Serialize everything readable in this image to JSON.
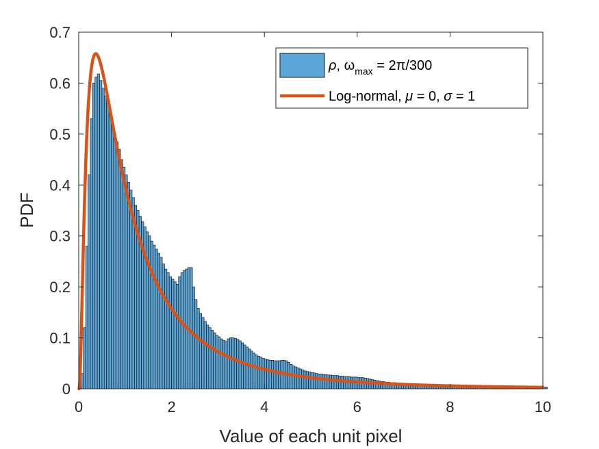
{
  "chart_data": {
    "type": "bar",
    "xlabel": "Value of each unit pixel",
    "ylabel": "PDF",
    "xlim": [
      0,
      10
    ],
    "ylim": [
      0,
      0.7
    ],
    "xticks": [
      "0",
      "2",
      "4",
      "6",
      "8",
      "10"
    ],
    "yticks": [
      "0",
      "0.1",
      "0.2",
      "0.3",
      "0.4",
      "0.5",
      "0.6",
      "0.7"
    ],
    "grid": false,
    "legend_position": "top-right",
    "colors": {
      "bars": "#5aa6d8",
      "bar_edge": "#1a1a1a",
      "curve": "#d95319"
    },
    "legend": {
      "hist_label": {
        "sym": "ρ",
        "mid": ", ω",
        "sub": "max",
        "tail": " = 2π/300"
      },
      "curve_label": {
        "pre": "Log-normal, ",
        "mu": "μ",
        "mid": " = 0, ",
        "sigma": "σ",
        "tail": " = 1"
      }
    },
    "series": [
      {
        "type": "histogram",
        "bin_width": 0.05,
        "bin_start": 0,
        "values": [
          0.003,
          0.03,
          0.12,
          0.28,
          0.42,
          0.53,
          0.6,
          0.612,
          0.618,
          0.605,
          0.59,
          0.575,
          0.56,
          0.54,
          0.52,
          0.5,
          0.485,
          0.47,
          0.45,
          0.435,
          0.42,
          0.405,
          0.39,
          0.375,
          0.36,
          0.35,
          0.338,
          0.328,
          0.318,
          0.308,
          0.3,
          0.29,
          0.282,
          0.274,
          0.266,
          0.258,
          0.245,
          0.235,
          0.228,
          0.22,
          0.215,
          0.21,
          0.205,
          0.22,
          0.228,
          0.232,
          0.235,
          0.238,
          0.238,
          0.2,
          0.175,
          0.158,
          0.148,
          0.14,
          0.132,
          0.125,
          0.12,
          0.115,
          0.11,
          0.105,
          0.102,
          0.098,
          0.095,
          0.093,
          0.098,
          0.1,
          0.1,
          0.099,
          0.097,
          0.094,
          0.09,
          0.086,
          0.082,
          0.078,
          0.074,
          0.07,
          0.067,
          0.064,
          0.062,
          0.06,
          0.058,
          0.057,
          0.056,
          0.056,
          0.055,
          0.055,
          0.055,
          0.056,
          0.056,
          0.055,
          0.052,
          0.048,
          0.045,
          0.043,
          0.041,
          0.039,
          0.037,
          0.035,
          0.034,
          0.033,
          0.032,
          0.031,
          0.03,
          0.029,
          0.029,
          0.028,
          0.028,
          0.027,
          0.027,
          0.026,
          0.026,
          0.026,
          0.025,
          0.025,
          0.024,
          0.024,
          0.024,
          0.023,
          0.023,
          0.023,
          0.022,
          0.022,
          0.022,
          0.021,
          0.02,
          0.019,
          0.018,
          0.017,
          0.016,
          0.015,
          0.014,
          0.014,
          0.013,
          0.013,
          0.012,
          0.012,
          0.012,
          0.011,
          0.011,
          0.011,
          0.01,
          0.01,
          0.01,
          0.01,
          0.01,
          0.009,
          0.009,
          0.009,
          0.009,
          0.009,
          0.008,
          0.008,
          0.008,
          0.008,
          0.008,
          0.008,
          0.007,
          0.007,
          0.007,
          0.007,
          0.007,
          0.007,
          0.006,
          0.006,
          0.006,
          0.006,
          0.006,
          0.006,
          0.006,
          0.006,
          0.005,
          0.005,
          0.005,
          0.005,
          0.005,
          0.005,
          0.005,
          0.005,
          0.005,
          0.005,
          0.005,
          0.004,
          0.004,
          0.004,
          0.004,
          0.004,
          0.004,
          0.004,
          0.004,
          0.004,
          0.004,
          0.004,
          0.004,
          0.004,
          0.004,
          0.004,
          0.003,
          0.003,
          0.003,
          0.003,
          0.003,
          0.003
        ]
      },
      {
        "type": "line",
        "distribution": "lognormal",
        "mu": 0,
        "sigma": 1
      }
    ]
  }
}
